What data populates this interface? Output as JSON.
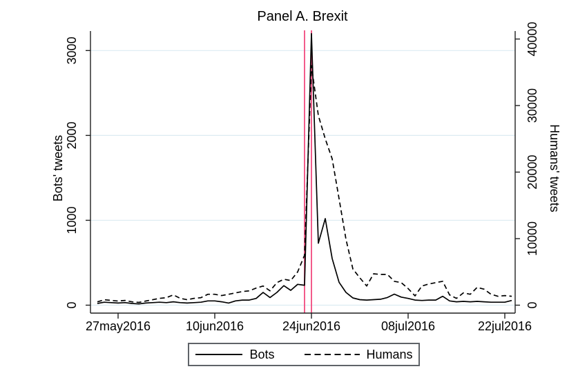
{
  "colors": {
    "series": "#000000",
    "event_line": "#f2497e",
    "grid": "#dcebf2",
    "axis": "#1f1f1f",
    "legend_border": "#5f6368",
    "text": "#000000"
  },
  "chart_data": {
    "type": "line",
    "title": "Panel A. Brexit",
    "x_unit": "daily dates",
    "x_start": "24may2016",
    "x_end": "23jul2016",
    "x": [
      "24may2016",
      "25may2016",
      "26may2016",
      "27may2016",
      "28may2016",
      "29may2016",
      "30may2016",
      "31may2016",
      "01jun2016",
      "02jun2016",
      "03jun2016",
      "04jun2016",
      "05jun2016",
      "06jun2016",
      "07jun2016",
      "08jun2016",
      "09jun2016",
      "10jun2016",
      "11jun2016",
      "12jun2016",
      "13jun2016",
      "14jun2016",
      "15jun2016",
      "16jun2016",
      "17jun2016",
      "18jun2016",
      "19jun2016",
      "20jun2016",
      "21jun2016",
      "22jun2016",
      "23jun2016",
      "24jun2016",
      "25jun2016",
      "26jun2016",
      "27jun2016",
      "28jun2016",
      "29jun2016",
      "30jun2016",
      "01jul2016",
      "02jul2016",
      "03jul2016",
      "04jul2016",
      "05jul2016",
      "06jul2016",
      "07jul2016",
      "08jul2016",
      "09jul2016",
      "10jul2016",
      "11jul2016",
      "12jul2016",
      "13jul2016",
      "14jul2016",
      "15jul2016",
      "16jul2016",
      "17jul2016",
      "18jul2016",
      "19jul2016",
      "20jul2016",
      "21jul2016",
      "22jul2016",
      "23jul2016"
    ],
    "x_tick_indices": [
      3,
      17,
      31,
      45,
      59
    ],
    "x_tick_labels": [
      "27may2016",
      "10jun2016",
      "24jun2016",
      "08jul2016",
      "22jul2016"
    ],
    "left_axis": {
      "label": "Bots' tweets",
      "ticks": [
        0,
        1000,
        2000,
        3000
      ],
      "ylim": [
        0,
        3230
      ]
    },
    "right_axis": {
      "label": "Humans' tweets",
      "ticks": [
        0,
        10000,
        20000,
        30000,
        40000
      ],
      "ylim": [
        0,
        41200
      ]
    },
    "vertical_lines": {
      "dates": [
        "23jun2016",
        "24jun2016"
      ],
      "indices": [
        30,
        31
      ],
      "color": "#f2497e"
    },
    "grid": "horizontal gridlines at left-axis ticks",
    "legend_position": "bottom center, boxed",
    "series": [
      {
        "name": "Bots",
        "axis": "left",
        "style": "solid",
        "color": "#000000",
        "values": [
          20,
          35,
          30,
          25,
          30,
          20,
          15,
          25,
          30,
          35,
          30,
          40,
          30,
          25,
          30,
          35,
          50,
          50,
          40,
          25,
          50,
          60,
          60,
          80,
          150,
          90,
          150,
          230,
          175,
          245,
          235,
          3200,
          730,
          1020,
          550,
          270,
          150,
          85,
          65,
          60,
          65,
          70,
          90,
          130,
          95,
          80,
          60,
          55,
          60,
          60,
          105,
          50,
          40,
          45,
          40,
          45,
          40,
          35,
          35,
          35,
          55
        ]
      },
      {
        "name": "Humans",
        "axis": "right",
        "style": "dashed",
        "color": "#000000",
        "values": [
          500,
          820,
          720,
          620,
          720,
          510,
          410,
          620,
          820,
          1030,
          1130,
          1540,
          1030,
          820,
          1030,
          1130,
          1640,
          1640,
          1440,
          1640,
          1850,
          2050,
          2160,
          2570,
          2880,
          2160,
          3390,
          3900,
          3700,
          5000,
          7500,
          36000,
          28500,
          25000,
          22000,
          16000,
          9900,
          5440,
          4110,
          2880,
          4720,
          4620,
          4620,
          3590,
          3390,
          2500,
          1400,
          2880,
          3180,
          3390,
          3590,
          1540,
          1030,
          1850,
          1640,
          2670,
          2400,
          1640,
          1340,
          1440,
          1340
        ]
      }
    ]
  }
}
